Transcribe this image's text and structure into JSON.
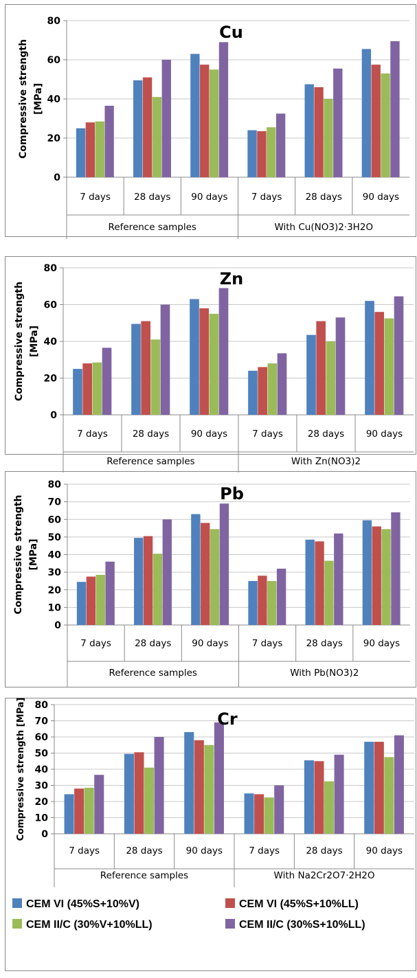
{
  "series_colors": [
    "#4f81bd",
    "#c0504d",
    "#9bbb59",
    "#8064a2"
  ],
  "legend": {
    "items": [
      "CEM VI (45%S+10%V)",
      "CEM VI (45%S+10%LL)",
      "CEM II/C (30%V+10%LL)",
      "CEM II/C (30%S+10%LL)"
    ]
  },
  "chart_data": [
    {
      "type": "bar",
      "title": "Cu",
      "ylabel": "Compressive strength [MPa]",
      "ylabel_lines": [
        "Compressive strength",
        "[MPa]"
      ],
      "ylim": [
        0,
        80
      ],
      "yticks": [
        0,
        20,
        40,
        60,
        80
      ],
      "categories": [
        "7 days",
        "28 days",
        "90 days",
        "7 days",
        "28 days",
        "90 days"
      ],
      "groups": [
        "Reference samples",
        "With Cu(NO3)2·3H2O"
      ],
      "series": [
        {
          "name": "CEM VI (45%S+10%V)",
          "values": [
            25,
            49.5,
            63,
            24,
            47.5,
            65.5
          ]
        },
        {
          "name": "CEM VI (45%S+10%LL)",
          "values": [
            28,
            51,
            57.5,
            23.5,
            46,
            57.5
          ]
        },
        {
          "name": "CEM II/C (30%V+10%LL)",
          "values": [
            28.5,
            41,
            55,
            25.5,
            40,
            53
          ]
        },
        {
          "name": "CEM II/C (30%S+10%LL)",
          "values": [
            36.5,
            60,
            69,
            32.5,
            55.5,
            69.5
          ]
        }
      ]
    },
    {
      "type": "bar",
      "title": "Zn",
      "ylabel": "Compressive strength [MPa]",
      "ylabel_lines": [
        "Compressive strength",
        "[MPa]"
      ],
      "ylim": [
        0,
        80
      ],
      "yticks": [
        0,
        20,
        40,
        60,
        80
      ],
      "categories": [
        "7 days",
        "28 days",
        "90 days",
        "7 days",
        "28 days",
        "90 days"
      ],
      "groups": [
        "Reference samples",
        "With Zn(NO3)2"
      ],
      "series": [
        {
          "name": "CEM VI (45%S+10%V)",
          "values": [
            25,
            49.5,
            63,
            24,
            43.5,
            62
          ]
        },
        {
          "name": "CEM VI (45%S+10%LL)",
          "values": [
            28,
            51,
            58,
            26,
            51,
            56
          ]
        },
        {
          "name": "CEM II/C (30%V+10%LL)",
          "values": [
            28.5,
            41,
            55,
            28,
            40,
            52.5
          ]
        },
        {
          "name": "CEM II/C (30%S+10%LL)",
          "values": [
            36.5,
            60,
            69,
            33.5,
            53,
            64.5
          ]
        }
      ]
    },
    {
      "type": "bar",
      "title": "Pb",
      "ylabel": "Compressive strength [MPa]",
      "ylabel_lines": [
        "Compressive strength",
        "[MPa]"
      ],
      "ylim": [
        0,
        80
      ],
      "yticks": [
        0,
        10,
        20,
        30,
        40,
        50,
        60,
        70,
        80
      ],
      "categories": [
        "7 days",
        "28 days",
        "90 days",
        "7 days",
        "28 days",
        "90 days"
      ],
      "groups": [
        "Reference samples",
        "With Pb(NO3)2"
      ],
      "series": [
        {
          "name": "CEM VI (45%S+10%V)",
          "values": [
            24.5,
            49.5,
            63,
            25,
            48.5,
            59.5
          ]
        },
        {
          "name": "CEM VI (45%S+10%LL)",
          "values": [
            27.5,
            50.5,
            58,
            28,
            47.5,
            56
          ]
        },
        {
          "name": "CEM II/C (30%V+10%LL)",
          "values": [
            28.5,
            40.5,
            54.5,
            25,
            36.5,
            54.5
          ]
        },
        {
          "name": "CEM II/C (30%S+10%LL)",
          "values": [
            36,
            60,
            69,
            32,
            52,
            64
          ]
        }
      ]
    },
    {
      "type": "bar",
      "title": "Cr",
      "ylabel": "Compressive strength [MPa]",
      "ylabel_lines": [
        "Compressive strength [MPa]"
      ],
      "ylim": [
        0,
        80
      ],
      "yticks": [
        0,
        10,
        20,
        30,
        40,
        50,
        60,
        70,
        80
      ],
      "categories": [
        "7 days",
        "28 days",
        "90 days",
        "7 days",
        "28 days",
        "90 days"
      ],
      "groups": [
        "Reference samples",
        "With Na2Cr2O7·2H2O"
      ],
      "series": [
        {
          "name": "CEM VI (45%S+10%V)",
          "values": [
            24.5,
            49.5,
            63,
            25,
            45.5,
            57
          ]
        },
        {
          "name": "CEM VI (45%S+10%LL)",
          "values": [
            28,
            50.5,
            58,
            24.5,
            45,
            57
          ]
        },
        {
          "name": "CEM II/C (30%V+10%LL)",
          "values": [
            28.5,
            41,
            55,
            22.5,
            32.5,
            47.5
          ]
        },
        {
          "name": "CEM II/C (30%S+10%LL)",
          "values": [
            36.5,
            60,
            69,
            30,
            49,
            61
          ]
        }
      ]
    }
  ]
}
